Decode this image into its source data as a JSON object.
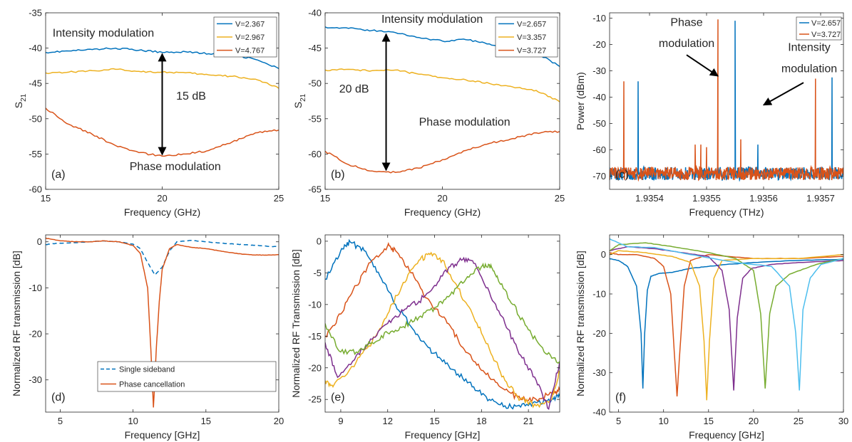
{
  "chart_data": [
    {
      "panel": "a",
      "type": "line",
      "xlabel": "Frequency (GHz)",
      "ylabel": "S21",
      "xlim": [
        15,
        25
      ],
      "ylim": [
        -60,
        -35
      ],
      "xticks": [
        15,
        20,
        25
      ],
      "yticks": [
        -60,
        -55,
        -50,
        -45,
        -40,
        -35
      ],
      "legend": "top-right",
      "series": [
        {
          "name": "V=2.367",
          "color": "#0072BD",
          "x": [
            15,
            16,
            17,
            18,
            19,
            20,
            21,
            22,
            23,
            24,
            25
          ],
          "y": [
            -40.6,
            -40.4,
            -40.2,
            -40.0,
            -40.3,
            -40.6,
            -40.5,
            -40.8,
            -40.9,
            -41.6,
            -42.9
          ]
        },
        {
          "name": "V=2.967",
          "color": "#EDB120",
          "x": [
            15,
            16,
            17,
            18,
            19,
            20,
            21,
            22,
            23,
            24,
            25
          ],
          "y": [
            -43.5,
            -43.4,
            -43.2,
            -43.0,
            -43.3,
            -43.4,
            -43.5,
            -43.8,
            -44.0,
            -44.4,
            -45.7
          ]
        },
        {
          "name": "V=4.767",
          "color": "#D95319",
          "x": [
            15,
            16,
            17,
            18,
            19,
            20,
            21,
            22,
            23,
            24,
            25
          ],
          "y": [
            -48.5,
            -50.8,
            -52.2,
            -53.8,
            -54.8,
            -55.3,
            -55.0,
            -54.5,
            -53.3,
            -52.0,
            -51.6
          ]
        }
      ],
      "annotations": [
        {
          "text": "Intensity modulation",
          "x": 15.3,
          "y": -38.4
        },
        {
          "text": "15 dB",
          "x": 20.6,
          "y": -47.3
        },
        {
          "text": "Phase modulation",
          "x": 18.6,
          "y": -57.3
        }
      ],
      "arrow": {
        "x": 20,
        "y1": -40.6,
        "y2": -55.3
      },
      "label": "(a)"
    },
    {
      "panel": "b",
      "type": "line",
      "xlabel": "Frequency (GHz)",
      "ylabel": "S21",
      "xlim": [
        15,
        25
      ],
      "ylim": [
        -65,
        -40
      ],
      "xticks": [
        15,
        20,
        25
      ],
      "yticks": [
        -65,
        -60,
        -55,
        -50,
        -45,
        -40
      ],
      "legend": "top-right",
      "series": [
        {
          "name": "V=2.657",
          "color": "#0072BD",
          "x": [
            15,
            16,
            17,
            18,
            19,
            20,
            21,
            22,
            23,
            24,
            25
          ],
          "y": [
            -42.0,
            -42.2,
            -42.5,
            -42.8,
            -43.5,
            -44.0,
            -43.8,
            -44.4,
            -45.0,
            -45.6,
            -47.6
          ]
        },
        {
          "name": "V=3.357",
          "color": "#EDB120",
          "x": [
            15,
            16,
            17,
            18,
            19,
            20,
            21,
            22,
            23,
            24,
            25
          ],
          "y": [
            -48.1,
            -48.0,
            -48.2,
            -48.1,
            -48.7,
            -49.2,
            -49.5,
            -50.0,
            -50.5,
            -51.0,
            -52.6
          ]
        },
        {
          "name": "V=3.727",
          "color": "#D95319",
          "x": [
            15,
            16,
            17,
            18,
            19,
            20,
            21,
            22,
            23,
            24,
            25
          ],
          "y": [
            -59.6,
            -61.5,
            -62.4,
            -62.6,
            -62.0,
            -60.8,
            -59.5,
            -58.5,
            -57.8,
            -57.0,
            -56.8
          ]
        }
      ],
      "annotations": [
        {
          "text": "Intensity modulation",
          "x": 17.4,
          "y": -41.4
        },
        {
          "text": "20 dB",
          "x": 15.6,
          "y": -51.3
        },
        {
          "text": "Phase modulation",
          "x": 19.0,
          "y": -56.0
        }
      ],
      "arrow": {
        "x": 17.6,
        "y1": -42.8,
        "y2": -62.5
      },
      "label": "(b)"
    },
    {
      "panel": "c",
      "type": "line",
      "xlabel": "Frequency (THz)",
      "ylabel": "Power (dBm)",
      "xlim": [
        1.93533,
        1.93574
      ],
      "ylim": [
        -75,
        -8
      ],
      "xticks": [
        1.9354,
        1.9355,
        1.9356,
        1.9357
      ],
      "xtick_labels": [
        "1.9354",
        "1.9355",
        "1.9356",
        "1.9357"
      ],
      "yticks": [
        -70,
        -60,
        -50,
        -40,
        -30,
        -20,
        -10
      ],
      "legend": "top-right",
      "series": [
        {
          "name": "V=2.657",
          "color": "#0072BD",
          "noise_floor": -69,
          "peaks": [
            [
              1.93538,
              -34
            ],
            [
              1.93555,
              -11
            ],
            [
              1.93559,
              -58
            ],
            [
              1.93572,
              -32.5
            ]
          ]
        },
        {
          "name": "V=3.727",
          "color": "#D95319",
          "noise_floor": -69,
          "peaks": [
            [
              1.935355,
              -34
            ],
            [
              1.93548,
              -58
            ],
            [
              1.93549,
              -58
            ],
            [
              1.9355,
              -59
            ],
            [
              1.93552,
              -10.5
            ],
            [
              1.93556,
              -56
            ],
            [
              1.935691,
              -33
            ]
          ]
        }
      ],
      "annotations": [
        {
          "text": "Phase",
          "x": 1.935465,
          "y": -13
        },
        {
          "text": "modulation",
          "x": 1.935465,
          "y": -21
        },
        {
          "text": "Intensity",
          "x": 1.93568,
          "y": -22.5
        },
        {
          "text": "modulation",
          "x": 1.93568,
          "y": -30.5
        }
      ],
      "arrows": [
        {
          "from": [
            1.935465,
            -24
          ],
          "to": [
            1.93552,
            -32
          ]
        },
        {
          "from": [
            1.93567,
            -34.5
          ],
          "to": [
            1.9356,
            -43
          ]
        }
      ],
      "label": "(c)"
    },
    {
      "panel": "d",
      "type": "line",
      "xlabel": "Frequency [GHz]",
      "ylabel": "Normalized RF transmission [dB]",
      "xlim": [
        4,
        20
      ],
      "ylim": [
        -37,
        1.5
      ],
      "xticks": [
        5,
        10,
        15,
        20
      ],
      "yticks": [
        -30,
        -20,
        -10,
        0
      ],
      "legend": "bottom-left",
      "series": [
        {
          "name": "Single sideband",
          "color": "#0072BD",
          "dash": true,
          "x": [
            4,
            5,
            6,
            7,
            8,
            9,
            10,
            10.5,
            11,
            11.5,
            12,
            12.5,
            13,
            14,
            15,
            16,
            17,
            18,
            19,
            20
          ],
          "y": [
            -0.6,
            -0.3,
            -0.2,
            0,
            0.2,
            0,
            -0.5,
            -1.5,
            -4.5,
            -7.2,
            -5.5,
            -2,
            0,
            0.3,
            0,
            -0.3,
            -0.5,
            -0.7,
            -0.9,
            -1.1
          ]
        },
        {
          "name": "Phase cancellation",
          "color": "#D95319",
          "x": [
            4,
            5,
            6,
            7,
            8,
            9,
            10,
            10.5,
            11,
            11.2,
            11.4,
            11.6,
            11.8,
            12,
            12.5,
            13,
            14,
            15,
            16,
            17,
            18,
            19,
            20
          ],
          "y": [
            0.8,
            0.2,
            0,
            0,
            0.2,
            0,
            -0.8,
            -2.5,
            -10,
            -22,
            -36,
            -23,
            -13,
            -6,
            -1.5,
            -0.6,
            -1.2,
            -1.5,
            -2,
            -2.5,
            -2.8,
            -2.9,
            -2.8
          ]
        }
      ],
      "label": "(d)"
    },
    {
      "panel": "e",
      "type": "line",
      "xlabel": "Frequency [GHz]",
      "ylabel": "Normalized RF Transmission [dB]",
      "xlim": [
        8,
        23
      ],
      "ylim": [
        -27,
        1
      ],
      "xticks": [
        9,
        12,
        15,
        18,
        21
      ],
      "yticks": [
        -25,
        -20,
        -15,
        -10,
        -5,
        0
      ],
      "series": [
        {
          "color": "#0072BD",
          "x": [
            8,
            9,
            9.6,
            10.5,
            11.5,
            12.5,
            13.5,
            14.5,
            15.5,
            16.5,
            17.5,
            18.5,
            19.5,
            20.5,
            21.5,
            22.5,
            23
          ],
          "y": [
            -6,
            -1.5,
            -0.1,
            -1.5,
            -5.5,
            -10,
            -13.5,
            -16.5,
            -19,
            -21,
            -23,
            -25,
            -26,
            -26.2,
            -25.5,
            -25,
            -24.5
          ]
        },
        {
          "color": "#D95319",
          "x": [
            8,
            9,
            10,
            11,
            12,
            12.5,
            13.5,
            14.5,
            15.5,
            16.5,
            17.5,
            18.5,
            19.5,
            20.5,
            21.5,
            22.5,
            23
          ],
          "y": [
            -15,
            -11.5,
            -7,
            -3,
            -0.7,
            -1.5,
            -5,
            -9,
            -12,
            -15.5,
            -19,
            -21.5,
            -23.5,
            -25,
            -25,
            -24,
            -23.5
          ]
        },
        {
          "color": "#EDB120",
          "x": [
            8,
            8.5,
            10,
            11,
            12,
            13,
            14,
            14.7,
            15.5,
            16.5,
            17.5,
            18.5,
            19.5,
            20.5,
            21.5,
            22.5,
            23
          ],
          "y": [
            -22,
            -23,
            -19,
            -16,
            -11.5,
            -6.5,
            -3,
            -2.1,
            -3,
            -7.5,
            -12,
            -17,
            -22,
            -25,
            -26,
            -25,
            -20.5
          ]
        },
        {
          "color": "#7E2F8E",
          "x": [
            8,
            8.8,
            10,
            11,
            12,
            13,
            14,
            15,
            16,
            16.8,
            17.5,
            18.5,
            19.5,
            20.5,
            21.5,
            22.3,
            23
          ],
          "y": [
            -16,
            -21.5,
            -18,
            -15.5,
            -13,
            -11,
            -9.5,
            -7,
            -4,
            -2.9,
            -3.5,
            -8,
            -13,
            -18,
            -22,
            -26.5,
            -19
          ]
        },
        {
          "color": "#77AC30",
          "x": [
            8,
            9,
            10,
            11,
            12,
            13,
            14,
            15,
            16,
            17,
            18,
            18.5,
            19,
            20,
            21,
            22,
            23
          ],
          "y": [
            -13,
            -17.5,
            -17.5,
            -16,
            -14.5,
            -13.5,
            -12,
            -10.5,
            -8.5,
            -6,
            -4,
            -3.7,
            -5.5,
            -10,
            -14,
            -17.5,
            -19
          ]
        }
      ],
      "label": "(e)"
    },
    {
      "panel": "f",
      "type": "line",
      "xlabel": "Frequency [GHz]",
      "ylabel": "Normalized RF transmission [dB]",
      "xlim": [
        4,
        30
      ],
      "ylim": [
        -40,
        5
      ],
      "xticks": [
        5,
        10,
        15,
        20,
        25,
        30
      ],
      "yticks": [
        -40,
        -30,
        -20,
        -10,
        0
      ],
      "series": [
        {
          "color": "#0072BD",
          "x": [
            4,
            5,
            6,
            7,
            7.5,
            7.7,
            7.9,
            8.2,
            8.6,
            9.5,
            11,
            13,
            15,
            17,
            20,
            25,
            30
          ],
          "y": [
            -1,
            -1.5,
            -3,
            -8,
            -20,
            -34,
            -20,
            -9,
            -5.5,
            -4.8,
            -4.5,
            -3.5,
            -3,
            -2.5,
            -2,
            -1.5,
            -1.2
          ]
        },
        {
          "color": "#D95319",
          "x": [
            4,
            5,
            7,
            9,
            10,
            10.8,
            11.2,
            11.5,
            11.8,
            12.3,
            13,
            15,
            20,
            25,
            30
          ],
          "y": [
            0.5,
            0,
            0,
            -1,
            -3,
            -10,
            -25,
            -36,
            -25,
            -8,
            -1.5,
            0,
            -1,
            -1,
            -0.5
          ]
        },
        {
          "color": "#EDB120",
          "x": [
            4,
            5,
            8,
            11,
            13,
            14,
            14.5,
            14.8,
            15.1,
            15.6,
            16.5,
            20,
            25,
            30
          ],
          "y": [
            0,
            1,
            0.5,
            -0.5,
            -2,
            -8,
            -22,
            -37,
            -22,
            -6,
            -1.5,
            -1,
            -1,
            0
          ]
        },
        {
          "color": "#7E2F8E",
          "x": [
            4,
            6,
            9,
            12,
            15,
            16.5,
            17.3,
            17.8,
            18.2,
            18.8,
            19.8,
            22,
            25,
            30
          ],
          "y": [
            1,
            2,
            1.5,
            0.5,
            -0.5,
            -4,
            -14,
            -34.5,
            -16,
            -6,
            -3.5,
            -2.5,
            -2,
            -1.5
          ]
        },
        {
          "color": "#77AC30",
          "x": [
            4,
            5,
            8,
            11,
            15,
            18,
            20,
            20.8,
            21.3,
            21.8,
            22.5,
            24,
            27,
            30
          ],
          "y": [
            1,
            2.5,
            3,
            2,
            0.5,
            -1,
            -4,
            -15,
            -34,
            -15,
            -8,
            -5,
            -2.5,
            -1
          ]
        },
        {
          "color": "#4DBEEE",
          "x": [
            4,
            6,
            9,
            13,
            18,
            22,
            24,
            24.7,
            25.1,
            25.5,
            26.3,
            27.5,
            30
          ],
          "y": [
            4,
            2,
            1.8,
            0,
            -2,
            -3,
            -8,
            -20,
            -34.5,
            -14,
            -6,
            -2.5,
            -1
          ]
        }
      ],
      "label": "(f)"
    }
  ]
}
